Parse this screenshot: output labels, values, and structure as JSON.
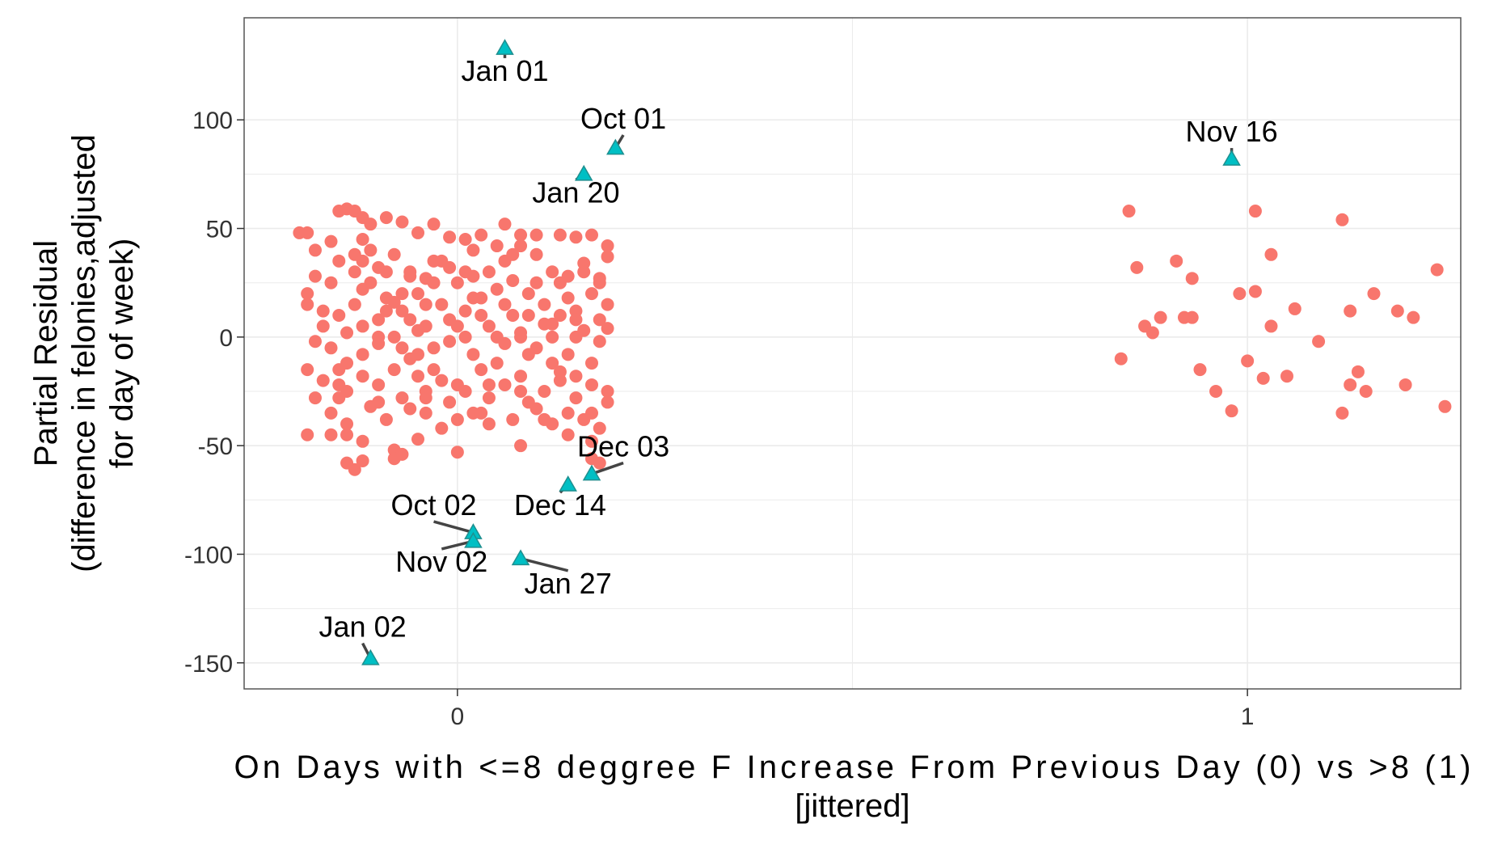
{
  "chart_data": {
    "type": "scatter",
    "title": "",
    "xlabel_lines": [
      "On Days with <=8 deggree F Increase From Previous Day (0) vs >8 (1)",
      "[jittered]"
    ],
    "ylabel_lines": [
      "Partial Residual",
      "(difference in felonies,adjusted",
      "for day of week)"
    ],
    "xlim": [
      -0.27,
      1.27
    ],
    "ylim": [
      -162,
      147
    ],
    "x_ticks": [
      0,
      1
    ],
    "x_tick_labels": [
      "0",
      "1"
    ],
    "y_ticks": [
      -150,
      -100,
      -50,
      0,
      50,
      100
    ],
    "y_tick_labels": [
      "-150",
      "-100",
      "-50",
      "0",
      "50",
      "100"
    ],
    "grid": true,
    "legend": "none",
    "colors": {
      "points": "#F8766D",
      "outliers": "#00BFC4",
      "outlier_stroke": "#1f8f8f",
      "leader": "#444444",
      "grid": "#ebebeb",
      "panel_border": "#555555",
      "tick_text": "#333333"
    },
    "series": [
      {
        "marker": "circle",
        "points": [
          [
            -0.19,
            48
          ],
          [
            -0.15,
            58
          ],
          [
            -0.14,
            59
          ],
          [
            -0.13,
            58
          ],
          [
            -0.12,
            55
          ],
          [
            -0.11,
            52
          ],
          [
            -0.18,
            40
          ],
          [
            -0.16,
            44
          ],
          [
            -0.12,
            45
          ],
          [
            -0.09,
            55
          ],
          [
            -0.07,
            53
          ],
          [
            -0.05,
            48
          ],
          [
            -0.03,
            52
          ],
          [
            -0.01,
            46
          ],
          [
            0.01,
            45
          ],
          [
            0.03,
            47
          ],
          [
            0.06,
            52
          ],
          [
            0.08,
            47
          ],
          [
            0.1,
            47
          ],
          [
            0.13,
            47
          ],
          [
            0.15,
            46
          ],
          [
            0.17,
            47
          ],
          [
            -0.18,
            28
          ],
          [
            -0.15,
            35
          ],
          [
            -0.13,
            30
          ],
          [
            -0.11,
            25
          ],
          [
            -0.1,
            32
          ],
          [
            -0.08,
            38
          ],
          [
            -0.06,
            30
          ],
          [
            -0.04,
            27
          ],
          [
            -0.03,
            35
          ],
          [
            -0.01,
            32
          ],
          [
            0.02,
            40
          ],
          [
            0.04,
            30
          ],
          [
            0.06,
            35
          ],
          [
            0.08,
            42
          ],
          [
            0.1,
            38
          ],
          [
            0.12,
            30
          ],
          [
            0.14,
            28
          ],
          [
            0.16,
            34
          ],
          [
            0.18,
            25
          ],
          [
            0.19,
            37
          ],
          [
            -0.19,
            15
          ],
          [
            -0.17,
            5
          ],
          [
            -0.15,
            10
          ],
          [
            -0.13,
            15
          ],
          [
            -0.12,
            22
          ],
          [
            -0.1,
            8
          ],
          [
            -0.09,
            18
          ],
          [
            -0.07,
            12
          ],
          [
            -0.05,
            20
          ],
          [
            -0.04,
            5
          ],
          [
            -0.02,
            15
          ],
          [
            0.0,
            25
          ],
          [
            0.01,
            12
          ],
          [
            0.03,
            18
          ],
          [
            0.05,
            22
          ],
          [
            0.07,
            10
          ],
          [
            0.09,
            20
          ],
          [
            0.11,
            15
          ],
          [
            0.13,
            25
          ],
          [
            0.15,
            12
          ],
          [
            0.17,
            20
          ],
          [
            0.19,
            15
          ],
          [
            -0.18,
            -2
          ],
          [
            -0.16,
            -5
          ],
          [
            -0.14,
            2
          ],
          [
            -0.12,
            -8
          ],
          [
            -0.1,
            -3
          ],
          [
            -0.08,
            0
          ],
          [
            -0.06,
            -10
          ],
          [
            -0.05,
            3
          ],
          [
            -0.03,
            -5
          ],
          [
            -0.01,
            -2
          ],
          [
            0.01,
            0
          ],
          [
            0.02,
            -8
          ],
          [
            0.04,
            5
          ],
          [
            0.06,
            -3
          ],
          [
            0.08,
            2
          ],
          [
            0.1,
            -5
          ],
          [
            0.12,
            0
          ],
          [
            0.14,
            -8
          ],
          [
            0.16,
            3
          ],
          [
            0.18,
            -2
          ],
          [
            -0.19,
            -15
          ],
          [
            -0.17,
            -20
          ],
          [
            -0.15,
            -15
          ],
          [
            -0.14,
            -25
          ],
          [
            -0.12,
            -18
          ],
          [
            -0.1,
            -22
          ],
          [
            -0.08,
            -15
          ],
          [
            -0.07,
            -28
          ],
          [
            -0.05,
            -18
          ],
          [
            -0.04,
            -25
          ],
          [
            -0.02,
            -20
          ],
          [
            -0.01,
            -30
          ],
          [
            0.01,
            -25
          ],
          [
            0.03,
            -15
          ],
          [
            0.04,
            -28
          ],
          [
            0.06,
            -22
          ],
          [
            0.08,
            -18
          ],
          [
            0.09,
            -30
          ],
          [
            0.11,
            -25
          ],
          [
            0.13,
            -20
          ],
          [
            0.15,
            -28
          ],
          [
            0.17,
            -22
          ],
          [
            0.19,
            -25
          ],
          [
            -0.16,
            -35
          ],
          [
            -0.14,
            -40
          ],
          [
            -0.11,
            -32
          ],
          [
            -0.09,
            -38
          ],
          [
            -0.06,
            -33
          ],
          [
            -0.04,
            -35
          ],
          [
            -0.02,
            -42
          ],
          [
            0.0,
            -38
          ],
          [
            0.02,
            -35
          ],
          [
            0.04,
            -40
          ],
          [
            0.07,
            -38
          ],
          [
            0.1,
            -33
          ],
          [
            0.12,
            -40
          ],
          [
            0.14,
            -35
          ],
          [
            0.16,
            -38
          ],
          [
            0.18,
            -42
          ],
          [
            -0.19,
            -45
          ],
          [
            -0.14,
            -45
          ],
          [
            -0.12,
            -48
          ],
          [
            -0.08,
            -52
          ],
          [
            -0.05,
            -47
          ],
          [
            0.0,
            -53
          ],
          [
            0.08,
            -50
          ],
          [
            0.14,
            -45
          ],
          [
            0.17,
            -48
          ],
          [
            -0.14,
            -58
          ],
          [
            -0.13,
            -61
          ],
          [
            -0.12,
            -57
          ],
          [
            -0.08,
            -56
          ],
          [
            -0.07,
            -54
          ],
          [
            0.17,
            -56
          ],
          [
            0.18,
            -58
          ],
          [
            -0.2,
            48
          ],
          [
            -0.19,
            20
          ],
          [
            -0.16,
            -45
          ],
          [
            -0.15,
            -28
          ],
          [
            -0.13,
            38
          ],
          [
            -0.11,
            40
          ],
          [
            -0.09,
            30
          ],
          [
            -0.07,
            20
          ],
          [
            -0.05,
            -8
          ],
          [
            -0.02,
            35
          ],
          [
            0.0,
            5
          ],
          [
            0.02,
            28
          ],
          [
            0.05,
            -12
          ],
          [
            0.07,
            26
          ],
          [
            0.09,
            -8
          ],
          [
            0.11,
            6
          ],
          [
            0.13,
            -16
          ],
          [
            0.15,
            8
          ],
          [
            0.17,
            -12
          ],
          [
            0.19,
            4
          ],
          [
            -0.18,
            -28
          ],
          [
            -0.17,
            12
          ],
          [
            -0.16,
            25
          ],
          [
            -0.14,
            -12
          ],
          [
            -0.12,
            5
          ],
          [
            -0.1,
            -30
          ],
          [
            -0.09,
            12
          ],
          [
            -0.07,
            -5
          ],
          [
            -0.06,
            28
          ],
          [
            -0.04,
            15
          ],
          [
            -0.03,
            -15
          ],
          [
            -0.01,
            8
          ],
          [
            0.0,
            -22
          ],
          [
            0.02,
            18
          ],
          [
            0.03,
            -35
          ],
          [
            0.05,
            0
          ],
          [
            0.06,
            15
          ],
          [
            0.08,
            -25
          ],
          [
            0.09,
            10
          ],
          [
            0.1,
            25
          ],
          [
            0.12,
            -12
          ],
          [
            0.13,
            10
          ],
          [
            0.15,
            -18
          ],
          [
            0.16,
            30
          ],
          [
            0.18,
            8
          ],
          [
            0.19,
            -30
          ],
          [
            -0.1,
            0
          ],
          [
            -0.06,
            8
          ],
          [
            -0.03,
            25
          ],
          [
            0.01,
            30
          ],
          [
            0.04,
            -22
          ],
          [
            0.07,
            38
          ],
          [
            0.11,
            -38
          ],
          [
            0.14,
            18
          ],
          [
            0.17,
            -35
          ],
          [
            0.19,
            42
          ],
          [
            0.08,
            0
          ],
          [
            0.12,
            6
          ],
          [
            0.15,
            0
          ],
          [
            0.03,
            10
          ],
          [
            -0.04,
            -28
          ],
          [
            -0.08,
            16
          ],
          [
            -0.15,
            -22
          ],
          [
            -0.12,
            35
          ],
          [
            0.18,
            27
          ],
          [
            0.05,
            42
          ],
          [
            0.84,
            -10
          ],
          [
            0.85,
            58
          ],
          [
            0.86,
            32
          ],
          [
            0.87,
            5
          ],
          [
            0.88,
            2
          ],
          [
            0.89,
            9
          ],
          [
            0.91,
            35
          ],
          [
            0.92,
            9
          ],
          [
            0.93,
            9
          ],
          [
            0.93,
            27
          ],
          [
            0.94,
            -15
          ],
          [
            0.96,
            -25
          ],
          [
            0.98,
            -34
          ],
          [
            0.99,
            20
          ],
          [
            1.0,
            -11
          ],
          [
            1.01,
            58
          ],
          [
            1.01,
            21
          ],
          [
            1.02,
            -19
          ],
          [
            1.03,
            5
          ],
          [
            1.03,
            38
          ],
          [
            1.05,
            -18
          ],
          [
            1.06,
            13
          ],
          [
            1.09,
            -2
          ],
          [
            1.12,
            54
          ],
          [
            1.12,
            -35
          ],
          [
            1.13,
            -22
          ],
          [
            1.13,
            12
          ],
          [
            1.14,
            -16
          ],
          [
            1.15,
            -25
          ],
          [
            1.16,
            20
          ],
          [
            1.19,
            12
          ],
          [
            1.2,
            -22
          ],
          [
            1.21,
            9
          ],
          [
            1.24,
            31
          ],
          [
            1.25,
            -32
          ]
        ]
      },
      {
        "marker": "triangle",
        "points": [
          [
            0.06,
            133
          ],
          [
            0.2,
            87
          ],
          [
            0.16,
            75
          ],
          [
            0.98,
            82
          ],
          [
            0.17,
            -63
          ],
          [
            0.14,
            -68
          ],
          [
            0.02,
            -90
          ],
          [
            0.02,
            -94
          ],
          [
            0.08,
            -102
          ],
          [
            -0.11,
            -148
          ]
        ]
      }
    ],
    "annotations": [
      {
        "text": "Jan 01",
        "x": 0.06,
        "y": 133,
        "label_x": 0.06,
        "label_y": 118
      },
      {
        "text": "Oct 01",
        "x": 0.2,
        "y": 87,
        "label_x": 0.21,
        "label_y": 96
      },
      {
        "text": "Jan 20",
        "x": 0.16,
        "y": 75,
        "label_x": 0.15,
        "label_y": 62
      },
      {
        "text": "Nov 16",
        "x": 0.98,
        "y": 82,
        "label_x": 0.98,
        "label_y": 90
      },
      {
        "text": "Dec 03",
        "x": 0.17,
        "y": -63,
        "label_x": 0.21,
        "label_y": -55
      },
      {
        "text": "Dec 14",
        "x": 0.14,
        "y": -68,
        "label_x": 0.13,
        "label_y": -82
      },
      {
        "text": "Oct 02",
        "x": 0.02,
        "y": -90,
        "label_x": -0.03,
        "label_y": -82
      },
      {
        "text": "Nov 02",
        "x": 0.02,
        "y": -94,
        "label_x": -0.02,
        "label_y": -108
      },
      {
        "text": "Jan 27",
        "x": 0.08,
        "y": -102,
        "label_x": 0.14,
        "label_y": -118
      },
      {
        "text": "Jan 02",
        "x": -0.11,
        "y": -148,
        "label_x": -0.12,
        "label_y": -138
      }
    ]
  }
}
